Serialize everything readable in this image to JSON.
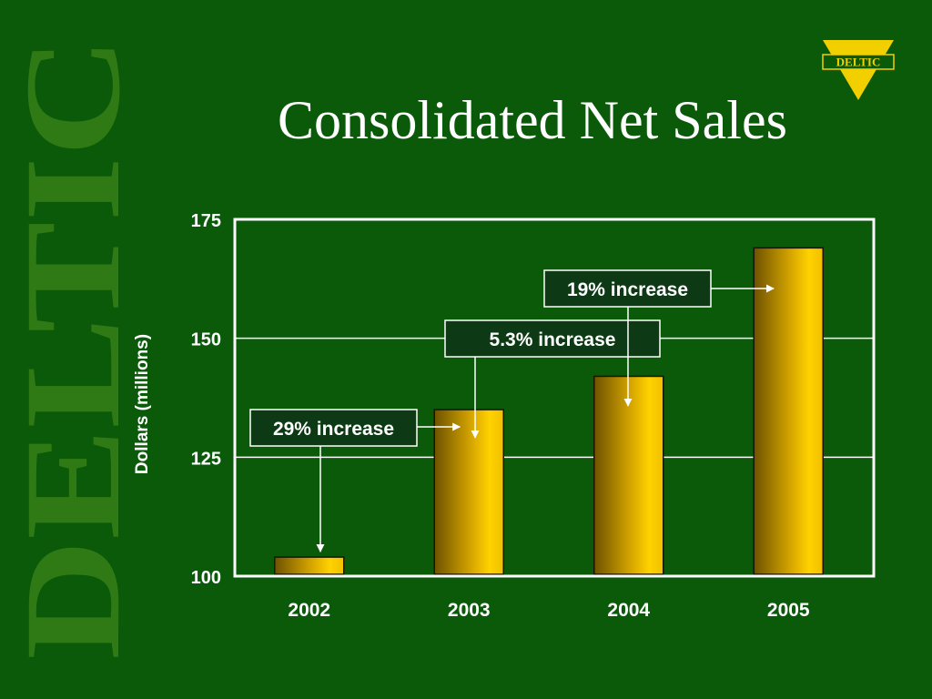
{
  "watermark": {
    "text": "DELTIC"
  },
  "logo": {
    "text": "DELTIC"
  },
  "colors": {
    "background": "#0a5a0a",
    "bar_gold": "#f2c200",
    "bar_dark": "#6e5200",
    "annotation_box": "#0d3a14",
    "text": "#ffffff"
  },
  "slide": {
    "title": "Consolidated Net Sales"
  },
  "chart_data": {
    "type": "bar",
    "categories": [
      "2002",
      "2003",
      "2004",
      "2005"
    ],
    "values": [
      104,
      135,
      142,
      169
    ],
    "ylabel": "Dollars (millions)",
    "ylim": [
      100,
      175
    ],
    "yticks": [
      "100",
      "125",
      "150",
      "175"
    ],
    "grid": true,
    "annotations": [
      {
        "text": "29% increase",
        "target": "2002"
      },
      {
        "text": "5.3% increase",
        "target": "2003"
      },
      {
        "text": "19% increase",
        "target": "2004"
      }
    ]
  }
}
